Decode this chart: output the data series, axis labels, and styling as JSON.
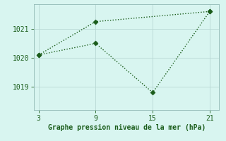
{
  "line1_x": [
    3,
    9,
    21
  ],
  "line1_y": [
    1020.1,
    1021.25,
    1021.6
  ],
  "line2_x": [
    3,
    9,
    15,
    21
  ],
  "line2_y": [
    1020.1,
    1020.5,
    1018.8,
    1021.6
  ],
  "line_color": "#1a5c1a",
  "bg_color": "#d8f5f0",
  "xlabel": "Graphe pression niveau de la mer (hPa)",
  "xticks": [
    3,
    9,
    15,
    21
  ],
  "yticks": [
    1019,
    1020,
    1021
  ],
  "ylim": [
    1018.2,
    1021.85
  ],
  "xlim": [
    2.5,
    22.0
  ],
  "grid_color": "#b8d8d4",
  "markersize": 3.5,
  "linewidth": 1.0,
  "tick_fontsize": 7,
  "xlabel_fontsize": 7
}
